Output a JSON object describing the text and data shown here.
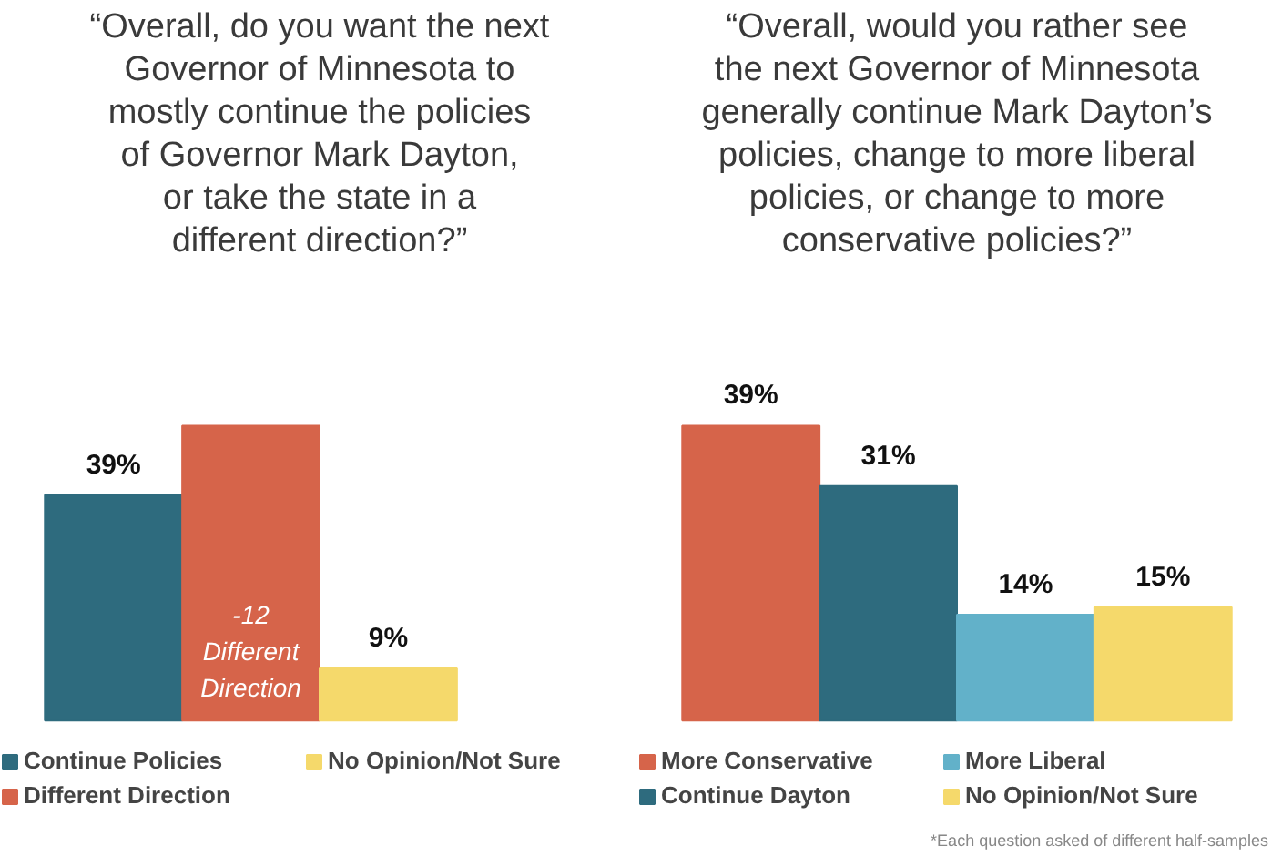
{
  "chart_data": [
    {
      "type": "bar",
      "title": "“Overall, do you want the next\nGovernor of Minnesota to\nmostly continue the policies\nof Governor Mark Dayton,\nor take the state in a\ndifferent direction?”",
      "categories": [
        null
      ],
      "series": [
        {
          "name": "Continue Policies",
          "color": "#2e6b7e",
          "values": [
            39
          ],
          "value_labels": [
            "39%"
          ]
        },
        {
          "name": "Different Direction",
          "color": "#d6644a",
          "values": [
            51
          ],
          "value_labels": [
            null
          ]
        },
        {
          "name": "No Opinion/Not Sure",
          "color": "#f5d96b",
          "values": [
            9
          ],
          "value_labels": [
            "9%"
          ]
        }
      ],
      "annotations": [
        "-12\nDifferent\nDirection"
      ],
      "legend": "bottom",
      "grid": false,
      "tick_labels": false
    },
    {
      "type": "bar",
      "title": "“Overall, would you rather see\nthe next Governor of Minnesota\ngenerally continue Mark Dayton’s\npolicies, change to more liberal\npolicies, or change to more\nconservative policies?”",
      "categories": [
        null
      ],
      "series": [
        {
          "name": "More Conservative",
          "color": "#d6644a",
          "values": [
            39
          ],
          "value_labels": [
            "39%"
          ]
        },
        {
          "name": "Continue Dayton",
          "color": "#2e6b7e",
          "values": [
            31
          ],
          "value_labels": [
            "31%"
          ]
        },
        {
          "name": "More Liberal",
          "color": "#62b1c9",
          "values": [
            14
          ],
          "value_labels": [
            "14%"
          ]
        },
        {
          "name": "No Opinion/Not Sure",
          "color": "#f5d96b",
          "values": [
            15
          ],
          "value_labels": [
            "15%"
          ]
        }
      ],
      "annotations": [
        "*Each question asked of different half-samples"
      ],
      "legend": "bottom",
      "grid": false,
      "tick_labels": false
    }
  ]
}
